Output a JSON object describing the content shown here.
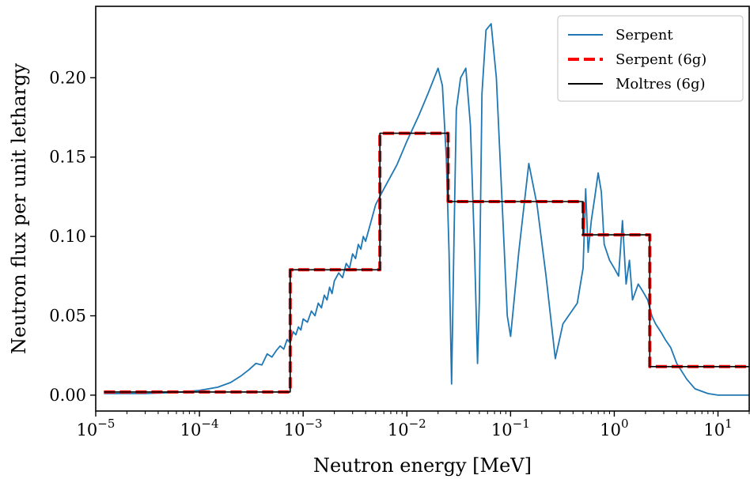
{
  "chart_data": {
    "type": "line",
    "title": "",
    "xlabel": "Neutron energy [MeV]",
    "ylabel": "Neutron flux per unit lethargy",
    "xscale": "log",
    "xlim": [
      1e-05,
      20
    ],
    "ylim": [
      -0.01,
      0.245
    ],
    "x_ticks": [
      {
        "value": 1e-05,
        "base": "10",
        "exp": "−5"
      },
      {
        "value": 0.0001,
        "base": "10",
        "exp": "−4"
      },
      {
        "value": 0.001,
        "base": "10",
        "exp": "−3"
      },
      {
        "value": 0.01,
        "base": "10",
        "exp": "−2"
      },
      {
        "value": 0.1,
        "base": "10",
        "exp": "−1"
      },
      {
        "value": 1,
        "base": "10",
        "exp": "0"
      },
      {
        "value": 10,
        "base": "10",
        "exp": "1"
      }
    ],
    "y_ticks": [
      {
        "value": 0.0,
        "label": "0.00"
      },
      {
        "value": 0.05,
        "label": "0.05"
      },
      {
        "value": 0.1,
        "label": "0.10"
      },
      {
        "value": 0.15,
        "label": "0.15"
      },
      {
        "value": 0.2,
        "label": "0.20"
      }
    ],
    "grid": false,
    "legend_position": "top-right",
    "series": [
      {
        "name": "Serpent",
        "style": "solid",
        "color": "#1f77b4",
        "x": [
          1.2e-05,
          3e-05,
          5e-05,
          7e-05,
          0.0001,
          0.00015,
          0.0002,
          0.00025,
          0.0003,
          0.00035,
          0.0004,
          0.00045,
          0.0005,
          0.00055,
          0.0006,
          0.00065,
          0.0007,
          0.00075,
          0.0008,
          0.00085,
          0.0009,
          0.00095,
          0.001,
          0.0011,
          0.0012,
          0.0013,
          0.0014,
          0.0015,
          0.0016,
          0.0017,
          0.0018,
          0.0019,
          0.002,
          0.0022,
          0.0024,
          0.0026,
          0.0028,
          0.003,
          0.0032,
          0.0034,
          0.0036,
          0.0038,
          0.004,
          0.005,
          0.006,
          0.008,
          0.01,
          0.013,
          0.016,
          0.02,
          0.022,
          0.024,
          0.0255,
          0.027,
          0.0285,
          0.03,
          0.033,
          0.037,
          0.041,
          0.045,
          0.048,
          0.05,
          0.053,
          0.058,
          0.065,
          0.073,
          0.083,
          0.093,
          0.1,
          0.12,
          0.15,
          0.18,
          0.22,
          0.27,
          0.32,
          0.38,
          0.44,
          0.5,
          0.53,
          0.56,
          0.6,
          0.65,
          0.7,
          0.75,
          0.8,
          0.9,
          1.0,
          1.1,
          1.2,
          1.3,
          1.4,
          1.5,
          1.7,
          1.9,
          2.1,
          2.3,
          2.5,
          2.8,
          3.1,
          3.5,
          4.0,
          5.0,
          6.0,
          8.0,
          10.0,
          13.0,
          20.0
        ],
        "y": [
          0.001,
          0.001,
          0.0015,
          0.002,
          0.003,
          0.005,
          0.008,
          0.012,
          0.016,
          0.02,
          0.019,
          0.026,
          0.024,
          0.028,
          0.031,
          0.029,
          0.035,
          0.033,
          0.04,
          0.038,
          0.043,
          0.041,
          0.048,
          0.046,
          0.053,
          0.05,
          0.058,
          0.055,
          0.063,
          0.06,
          0.068,
          0.064,
          0.072,
          0.077,
          0.074,
          0.083,
          0.08,
          0.089,
          0.086,
          0.095,
          0.092,
          0.1,
          0.097,
          0.12,
          0.13,
          0.145,
          0.16,
          0.176,
          0.19,
          0.206,
          0.195,
          0.15,
          0.09,
          0.007,
          0.1,
          0.18,
          0.2,
          0.206,
          0.17,
          0.09,
          0.02,
          0.06,
          0.19,
          0.23,
          0.234,
          0.2,
          0.12,
          0.05,
          0.037,
          0.09,
          0.146,
          0.12,
          0.075,
          0.023,
          0.045,
          0.052,
          0.058,
          0.08,
          0.13,
          0.09,
          0.11,
          0.125,
          0.14,
          0.128,
          0.095,
          0.085,
          0.08,
          0.075,
          0.11,
          0.07,
          0.085,
          0.06,
          0.07,
          0.065,
          0.06,
          0.05,
          0.045,
          0.04,
          0.035,
          0.03,
          0.02,
          0.01,
          0.004,
          0.001,
          0.0,
          0.0,
          0.0
        ]
      },
      {
        "name": "Serpent (6g)",
        "style": "dashed",
        "color": "#ff0000",
        "x": [
          1.2e-05,
          0.00075,
          0.00075,
          0.0055,
          0.0055,
          0.025,
          0.025,
          0.5,
          0.5,
          2.2,
          2.2,
          20.0
        ],
        "y": [
          0.002,
          0.002,
          0.079,
          0.079,
          0.165,
          0.165,
          0.122,
          0.122,
          0.101,
          0.101,
          0.018,
          0.018
        ]
      },
      {
        "name": "Moltres (6g)",
        "style": "solid",
        "color": "#000000",
        "x": [
          1.2e-05,
          0.00075,
          0.00075,
          0.0055,
          0.0055,
          0.025,
          0.025,
          0.5,
          0.5,
          2.2,
          2.2,
          20.0
        ],
        "y": [
          0.002,
          0.002,
          0.079,
          0.079,
          0.165,
          0.165,
          0.122,
          0.122,
          0.101,
          0.101,
          0.018,
          0.018
        ]
      }
    ]
  }
}
